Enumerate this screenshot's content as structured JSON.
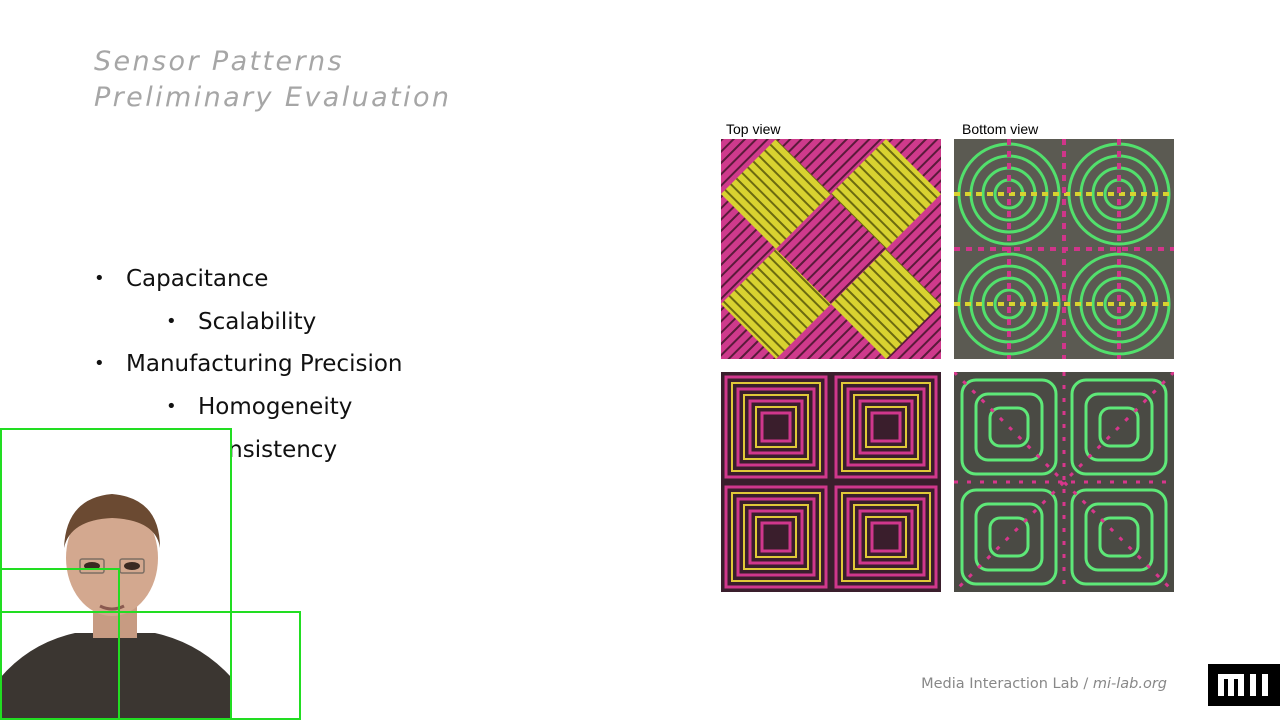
{
  "slide": {
    "title_line1": "Sensor Patterns",
    "title_line2": "Preliminary Evaluation"
  },
  "bullets": [
    {
      "text": "Capacitance",
      "level": 1
    },
    {
      "text": "Scalability",
      "level": 2
    },
    {
      "text": "Manufacturing Precision",
      "level": 1
    },
    {
      "text": "Homogeneity",
      "level": 2
    },
    {
      "text": "Consistency",
      "level": 2
    }
  ],
  "figure": {
    "caption_top": "Top view",
    "caption_bottom": "Bottom view"
  },
  "footer": {
    "lab": "Media Interaction Lab",
    "separator": " / ",
    "url": "mi-lab.org"
  },
  "colors": {
    "title": "#a6a6a6",
    "magenta": "#d6368f",
    "yellow": "#e8e22a",
    "green": "#4ee86a",
    "detection_box": "#22dd22"
  },
  "icons": [
    "mil-logo-icon",
    "bullet-icon"
  ]
}
